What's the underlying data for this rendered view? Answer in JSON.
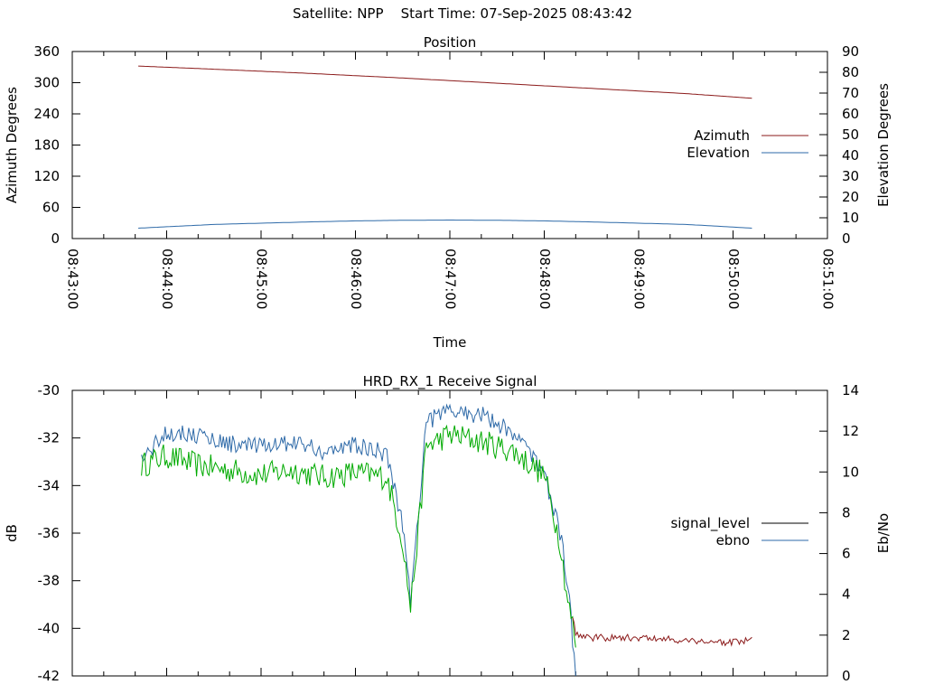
{
  "page_title": "Satellite: NPP    Start Time: 07-Sep-2025 08:43:42",
  "chart_data": [
    {
      "type": "line",
      "title": "Position",
      "xlabel": "Time",
      "ylabel": "Azimuth Degrees",
      "y2label": "Elevation Degrees",
      "xlim": [
        "08:43:00",
        "08:51:00"
      ],
      "x_ticks": [
        "08:43:00",
        "08:44:00",
        "08:45:00",
        "08:46:00",
        "08:47:00",
        "08:48:00",
        "08:49:00",
        "08:50:00",
        "08:51:00"
      ],
      "ylim": [
        0,
        360
      ],
      "y_ticks": [
        "0",
        "60",
        "120",
        "180",
        "240",
        "300",
        "360"
      ],
      "y2lim": [
        0,
        90
      ],
      "y2_ticks": [
        "0",
        "10",
        "20",
        "30",
        "40",
        "50",
        "60",
        "70",
        "80",
        "90"
      ],
      "grid": false,
      "legend_position": "right",
      "colors": {
        "Azimuth": "#8b1a1a",
        "Elevation": "#2e6aa8"
      },
      "series": [
        {
          "name": "Azimuth",
          "axis": "left",
          "x": [
            "08:43:42",
            "08:44:30",
            "08:45:30",
            "08:46:30",
            "08:47:30",
            "08:48:30",
            "08:49:30",
            "08:50:12"
          ],
          "values": [
            332,
            326,
            318,
            309,
            299,
            289,
            279,
            270
          ]
        },
        {
          "name": "Elevation",
          "axis": "right",
          "x": [
            "08:43:42",
            "08:44:30",
            "08:45:30",
            "08:46:00",
            "08:46:30",
            "08:47:00",
            "08:47:30",
            "08:48:00",
            "08:48:30",
            "08:49:30",
            "08:50:12"
          ],
          "values": [
            5,
            6.8,
            8,
            8.5,
            8.8,
            8.9,
            8.8,
            8.5,
            8,
            6.8,
            5
          ]
        }
      ]
    },
    {
      "type": "line",
      "title": "HRD_RX_1 Receive Signal",
      "ylabel": "dB",
      "y2label": "Eb/No",
      "xlim": [
        "08:43:00",
        "08:51:00"
      ],
      "ylim": [
        -42,
        -30
      ],
      "y_ticks": [
        "-30",
        "-32",
        "-34",
        "-36",
        "-38",
        "-40",
        "-42"
      ],
      "y2lim": [
        0,
        14
      ],
      "y2_ticks": [
        "0",
        "2",
        "4",
        "6",
        "8",
        "10",
        "12",
        "14"
      ],
      "grid": false,
      "legend_position": "right",
      "colors": {
        "signal_level": "#000000",
        "ebno": "#2e6aa8",
        "ebno_valid": "#00aa00",
        "signal_low": "#8b1a1a"
      },
      "series": [
        {
          "name": "signal_level",
          "axis": "left",
          "x": [
            "08:43:44",
            "08:44:00",
            "08:44:20",
            "08:44:40",
            "08:45:00",
            "08:45:20",
            "08:45:40",
            "08:46:00",
            "08:46:20",
            "08:46:30",
            "08:46:35",
            "08:46:40",
            "08:46:45",
            "08:47:00",
            "08:47:20",
            "08:47:40",
            "08:48:00",
            "08:48:10",
            "08:48:15",
            "08:48:20",
            "08:48:30",
            "08:49:00",
            "08:49:30",
            "08:50:00",
            "08:50:12"
          ],
          "values": [
            -32.8,
            -32.4,
            -32.8,
            -33.0,
            -33.2,
            -33.0,
            -33.3,
            -33.1,
            -33.3,
            -36.0,
            -38.8,
            -35.5,
            -32.0,
            -31.5,
            -31.8,
            -32.2,
            -33.2,
            -36.0,
            -38.5,
            -40.2,
            -40.4,
            -40.4,
            -40.5,
            -40.6,
            -40.5
          ]
        },
        {
          "name": "ebno",
          "axis": "right",
          "x": [
            "08:43:44",
            "08:44:00",
            "08:44:20",
            "08:44:40",
            "08:45:00",
            "08:45:20",
            "08:45:40",
            "08:46:00",
            "08:46:20",
            "08:46:30",
            "08:46:35",
            "08:46:40",
            "08:46:45",
            "08:47:00",
            "08:47:20",
            "08:47:40",
            "08:48:00",
            "08:48:10",
            "08:48:15",
            "08:48:20"
          ],
          "values": [
            10.6,
            12.0,
            11.8,
            11.4,
            11.2,
            11.5,
            11.0,
            11.3,
            10.9,
            7.5,
            3.7,
            8.0,
            12.5,
            13.0,
            12.8,
            12.0,
            10.0,
            7.0,
            4.5,
            0
          ]
        }
      ]
    }
  ]
}
